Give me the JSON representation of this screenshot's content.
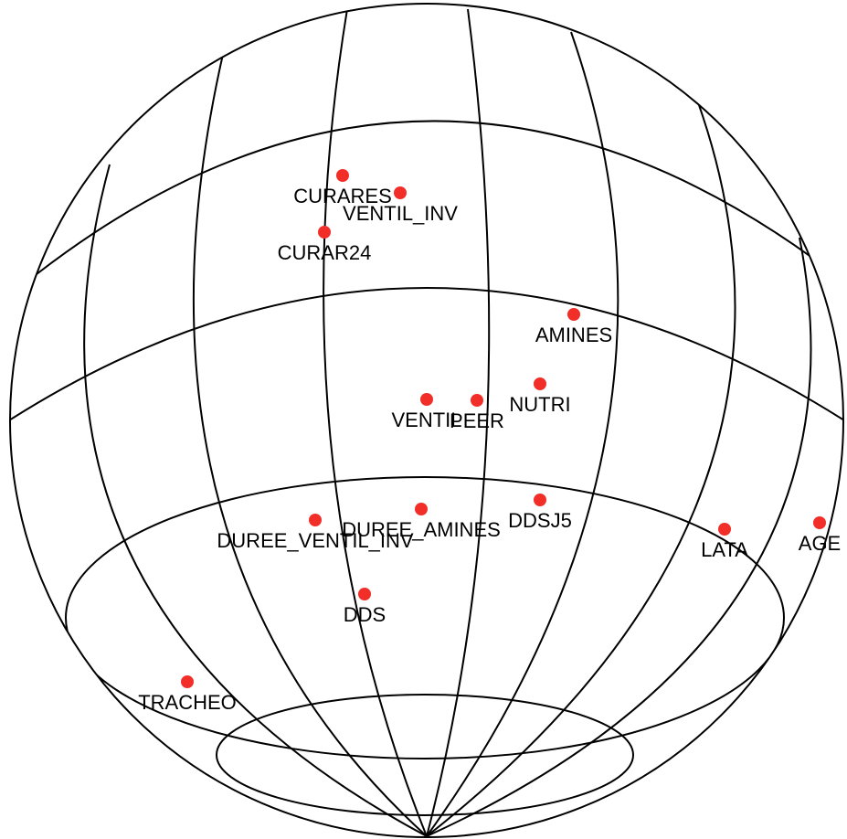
{
  "nodes": [
    {
      "label": "CURARES"
    },
    {
      "label": "VENTIL_INV"
    },
    {
      "label": "CURAR24"
    },
    {
      "label": "AMINES"
    },
    {
      "label": "NUTRI"
    },
    {
      "label": "VENTIL"
    },
    {
      "label": "PEER"
    },
    {
      "label": "DDSJ5"
    },
    {
      "label": "DUREE_AMINES"
    },
    {
      "label": "DUREE_VENTIL_INV"
    },
    {
      "label": "LATA"
    },
    {
      "label": "AGE"
    },
    {
      "label": "DDS"
    },
    {
      "label": "TRACHEO"
    }
  ]
}
